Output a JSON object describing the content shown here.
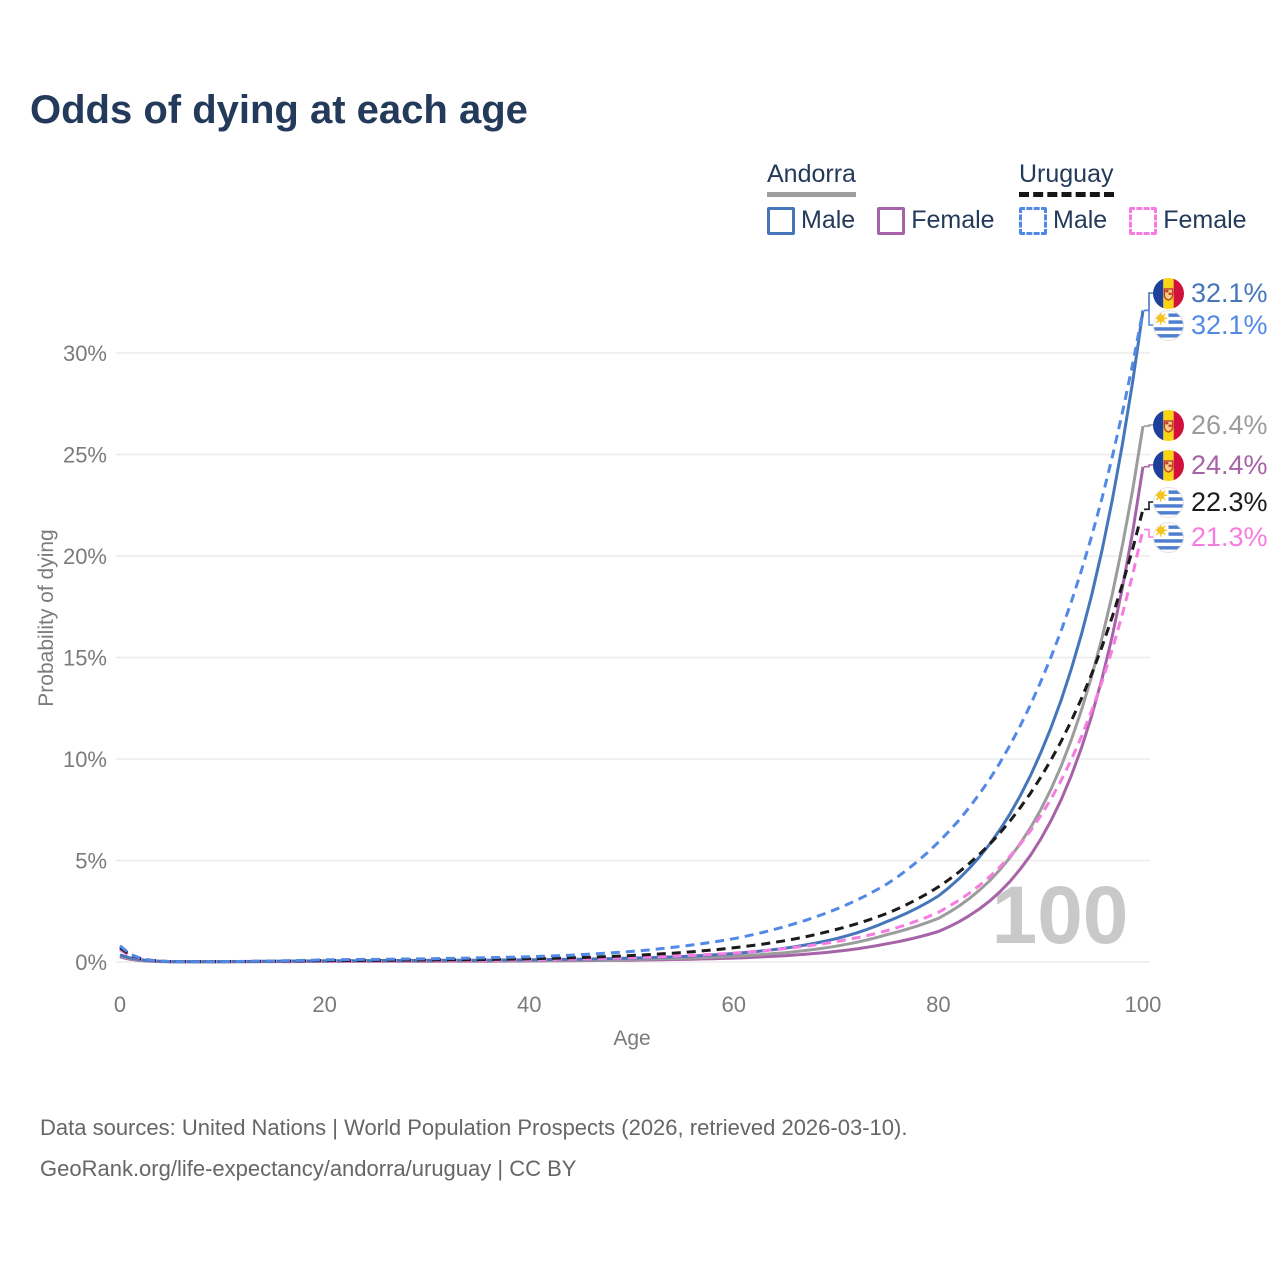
{
  "title": "Odds of dying at each age",
  "legend": {
    "groups": [
      {
        "title": "Andorra",
        "line_style": "solid",
        "underline_color": "#9e9e9e",
        "items": [
          {
            "label": "Male",
            "color": "#4576ba"
          },
          {
            "label": "Female",
            "color": "#a763a7"
          }
        ]
      },
      {
        "title": "Uruguay",
        "line_style": "dashed",
        "underline_color": "#161616",
        "items": [
          {
            "label": "Male",
            "color": "#5389e6"
          },
          {
            "label": "Female",
            "color": "#f77ce1"
          }
        ]
      }
    ]
  },
  "chart_data": {
    "type": "line",
    "title": "Odds of dying at each age",
    "xlabel": "Age",
    "ylabel": "Probability of dying",
    "xlim": [
      0,
      100
    ],
    "ylim": [
      0,
      33.5
    ],
    "x_ticks": [
      0,
      20,
      40,
      60,
      80,
      100
    ],
    "y_ticks": [
      0,
      5,
      10,
      15,
      20,
      25,
      30
    ],
    "y_tick_labels": [
      "0%",
      "5%",
      "10%",
      "15%",
      "20%",
      "25%",
      "30%"
    ],
    "grid": "horizontal",
    "legend_position": "top-right",
    "watermark": "100",
    "x": [
      0,
      5,
      10,
      15,
      20,
      25,
      30,
      35,
      40,
      45,
      50,
      55,
      60,
      65,
      70,
      75,
      80,
      85,
      90,
      95,
      100
    ],
    "series": [
      {
        "name": "Andorra Male",
        "country": "Andorra",
        "sex": "Male",
        "style": "solid",
        "color": "#4576ba",
        "flag": "andorra",
        "end_label": "32.1%",
        "end_value": 32.1,
        "values": [
          0.35,
          0.02,
          0.02,
          0.04,
          0.06,
          0.07,
          0.08,
          0.09,
          0.11,
          0.14,
          0.19,
          0.27,
          0.42,
          0.68,
          1.15,
          2.0,
          3.25,
          5.8,
          10.3,
          18.1,
          32.1
        ]
      },
      {
        "name": "Uruguay Male",
        "country": "Uruguay",
        "sex": "Male",
        "style": "dashed",
        "color": "#5389e6",
        "flag": "uruguay",
        "end_label": "32.1%",
        "end_value": 32.1,
        "values": [
          0.8,
          0.02,
          0.02,
          0.05,
          0.11,
          0.13,
          0.16,
          0.2,
          0.26,
          0.36,
          0.52,
          0.78,
          1.15,
          1.75,
          2.6,
          3.85,
          5.9,
          9.0,
          13.8,
          21.0,
          32.1
        ]
      },
      {
        "name": "Andorra (both sexes)",
        "country": "Andorra",
        "sex": "Both",
        "style": "solid",
        "color": "#9c9c9c",
        "flag": "andorra",
        "end_label": "26.4%",
        "end_value": 26.4,
        "values": [
          0.3,
          0.015,
          0.015,
          0.03,
          0.04,
          0.05,
          0.05,
          0.06,
          0.07,
          0.09,
          0.13,
          0.18,
          0.28,
          0.46,
          0.78,
          1.35,
          2.15,
          4.0,
          7.5,
          14.1,
          26.4
        ]
      },
      {
        "name": "Andorra Female",
        "country": "Andorra",
        "sex": "Female",
        "style": "solid",
        "color": "#a763a7",
        "flag": "andorra",
        "end_label": "24.4%",
        "end_value": 24.4,
        "values": [
          0.25,
          0.01,
          0.01,
          0.02,
          0.025,
          0.03,
          0.03,
          0.04,
          0.05,
          0.07,
          0.09,
          0.13,
          0.19,
          0.31,
          0.52,
          0.9,
          1.5,
          3.0,
          6.05,
          12.15,
          24.4
        ]
      },
      {
        "name": "Uruguay (both sexes)",
        "country": "Uruguay",
        "sex": "Both",
        "style": "dashed",
        "color": "#1b1b1b",
        "flag": "uruguay",
        "end_label": "22.3%",
        "end_value": 22.3,
        "values": [
          0.7,
          0.02,
          0.02,
          0.04,
          0.07,
          0.08,
          0.1,
          0.12,
          0.16,
          0.22,
          0.32,
          0.47,
          0.7,
          1.05,
          1.6,
          2.4,
          3.7,
          5.8,
          9.1,
          14.2,
          22.3
        ]
      },
      {
        "name": "Uruguay Female",
        "country": "Uruguay",
        "sex": "Female",
        "style": "dashed",
        "color": "#f77ce1",
        "flag": "uruguay",
        "end_label": "21.3%",
        "end_value": 21.3,
        "values": [
          0.6,
          0.02,
          0.02,
          0.03,
          0.04,
          0.05,
          0.06,
          0.08,
          0.11,
          0.15,
          0.21,
          0.3,
          0.44,
          0.66,
          1.0,
          1.55,
          2.45,
          4.2,
          7.2,
          12.4,
          21.3
        ]
      }
    ]
  },
  "footer": {
    "line1": "Data sources: United Nations | World Population Prospects (2026, retrieved 2026-03-10).",
    "line2": "GeoRank.org/life-expectancy/andorra/uruguay | CC BY"
  }
}
